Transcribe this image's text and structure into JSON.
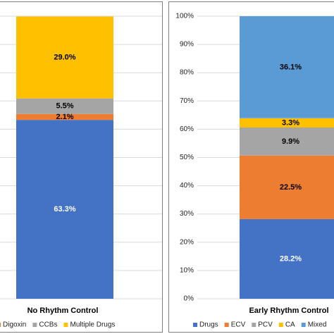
{
  "chart_data": [
    {
      "type": "bar",
      "stacked": true,
      "title": "",
      "categories": [
        "No Rhythm Control"
      ],
      "ylim": [
        0,
        100
      ],
      "grid": true,
      "legend_position": "bottom",
      "series": [
        {
          "name": "",
          "values": [
            63.3
          ],
          "color": "#4472c4",
          "label": "63.3%",
          "label_color": "#ffffff"
        },
        {
          "name": "Digoxin",
          "values": [
            2.1
          ],
          "color": "#ed7d31",
          "label": "2.1%",
          "label_color": "#000000"
        },
        {
          "name": "CCBs",
          "values": [
            5.5
          ],
          "color": "#a5a5a5",
          "label": "5.5%",
          "label_color": "#000000"
        },
        {
          "name": "Multiple Drugs",
          "values": [
            29.0
          ],
          "color": "#ffc000",
          "label": "29.0%",
          "label_color": "#000000"
        }
      ],
      "legend": [
        {
          "name": "Digoxin",
          "color": "#ed7d31"
        },
        {
          "name": "CCBs",
          "color": "#a5a5a5"
        },
        {
          "name": "Multiple Drugs",
          "color": "#ffc000"
        }
      ]
    },
    {
      "type": "bar",
      "stacked": true,
      "title": "",
      "categories": [
        "Early Rhythm Control"
      ],
      "ylim": [
        0,
        100
      ],
      "yticks": [
        "0%",
        "10%",
        "20%",
        "30%",
        "40%",
        "50%",
        "60%",
        "70%",
        "80%",
        "90%",
        "100%"
      ],
      "grid": true,
      "legend_position": "bottom",
      "series": [
        {
          "name": "Drugs",
          "values": [
            28.2
          ],
          "color": "#4472c4",
          "label": "28.2%",
          "label_color": "#ffffff"
        },
        {
          "name": "ECV",
          "values": [
            22.5
          ],
          "color": "#ed7d31",
          "label": "22.5%",
          "label_color": "#000000"
        },
        {
          "name": "PCV",
          "values": [
            9.9
          ],
          "color": "#a5a5a5",
          "label": "9.9%",
          "label_color": "#000000"
        },
        {
          "name": "CA",
          "values": [
            3.3
          ],
          "color": "#ffc000",
          "label": "3.3%",
          "label_color": "#000000"
        },
        {
          "name": "Mixed",
          "values": [
            36.1
          ],
          "color": "#5b9bd5",
          "label": "36.1%",
          "label_color": "#000000"
        }
      ],
      "legend": [
        {
          "name": "Drugs",
          "color": "#4472c4"
        },
        {
          "name": "ECV",
          "color": "#ed7d31"
        },
        {
          "name": "PCV",
          "color": "#a5a5a5"
        },
        {
          "name": "CA",
          "color": "#ffc000"
        },
        {
          "name": "Mixed",
          "color": "#5b9bd5"
        }
      ]
    }
  ]
}
